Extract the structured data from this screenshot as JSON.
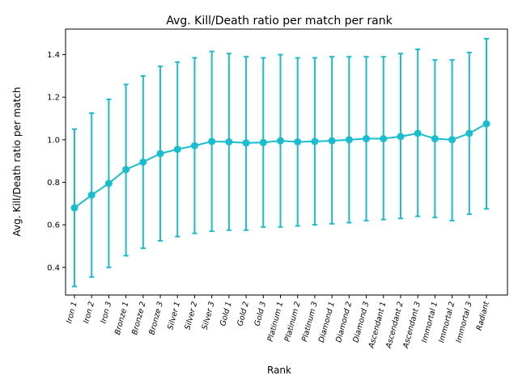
{
  "chart_data": {
    "type": "line",
    "title": "Avg. Kill/Death ratio per match per rank",
    "xlabel": "Rank",
    "ylabel": "Avg. Kill/Death ratio per match",
    "color": "#17becf",
    "ylim": [
      0.27,
      1.52
    ],
    "yticks": [
      0.4,
      0.6,
      0.8,
      1.0,
      1.2,
      1.4
    ],
    "grid": false,
    "categories": [
      "Iron 1",
      "Iron 2",
      "Iron 3",
      "Bronze 1",
      "Bronze 2",
      "Bronze 3",
      "Silver 1",
      "Silver 2",
      "Silver 3",
      "Gold 1",
      "Gold 2",
      "Gold 3",
      "Platinum 1",
      "Platinum 2",
      "Platinum 3",
      "Diamond 1",
      "Diamond 2",
      "Diamond 3",
      "Ascendant 1",
      "Ascendant 2",
      "Ascendant 3",
      "Immortal 1",
      "Immortal 2",
      "Immortal 3",
      "Radiant"
    ],
    "values": [
      0.68,
      0.74,
      0.795,
      0.86,
      0.895,
      0.935,
      0.955,
      0.972,
      0.992,
      0.99,
      0.985,
      0.987,
      0.995,
      0.99,
      0.992,
      0.995,
      1.0,
      1.005,
      1.005,
      1.015,
      1.03,
      1.005,
      1.0,
      1.03,
      1.075
    ],
    "error_low": [
      0.31,
      0.355,
      0.4,
      0.455,
      0.49,
      0.525,
      0.545,
      0.56,
      0.57,
      0.575,
      0.575,
      0.59,
      0.59,
      0.595,
      0.6,
      0.605,
      0.61,
      0.62,
      0.625,
      0.63,
      0.64,
      0.635,
      0.62,
      0.65,
      0.675
    ],
    "error_high": [
      1.05,
      1.125,
      1.19,
      1.26,
      1.3,
      1.345,
      1.365,
      1.385,
      1.415,
      1.405,
      1.39,
      1.385,
      1.4,
      1.385,
      1.385,
      1.39,
      1.39,
      1.39,
      1.39,
      1.405,
      1.425,
      1.375,
      1.375,
      1.41,
      1.475
    ]
  }
}
